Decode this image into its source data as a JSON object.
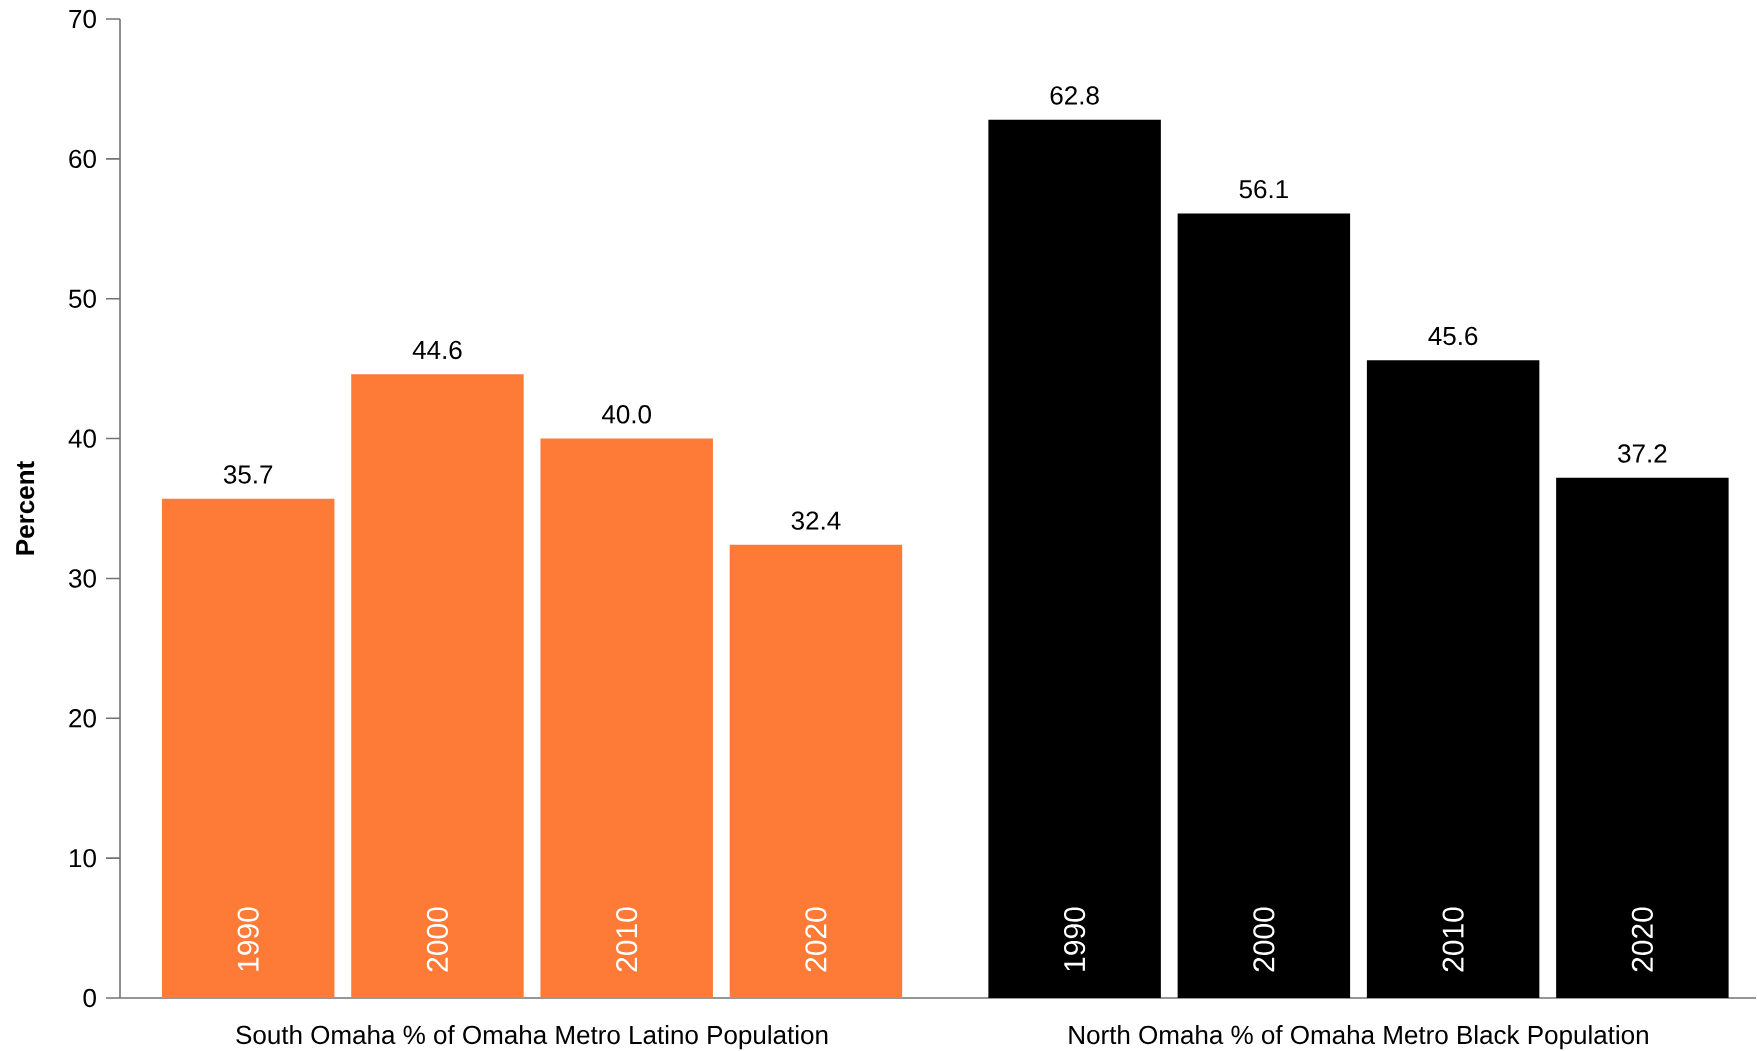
{
  "chart_data": {
    "type": "bar",
    "ylabel": "Percent",
    "categories": [
      "South Omaha % of Omaha Metro Latino Population",
      "North Omaha % of Omaha Metro Black Population"
    ],
    "series": [
      {
        "name": "1990",
        "colors": [
          "#fe7a37",
          "#000000"
        ],
        "values": [
          35.7,
          62.8
        ],
        "value_labels": [
          "35.7",
          "62.8"
        ]
      },
      {
        "name": "2000",
        "colors": [
          "#fe7a37",
          "#000000"
        ],
        "values": [
          44.6,
          56.1
        ],
        "value_labels": [
          "44.6",
          "56.1"
        ]
      },
      {
        "name": "2010",
        "colors": [
          "#fe7a37",
          "#000000"
        ],
        "values": [
          40.0,
          45.6
        ],
        "value_labels": [
          "40.0",
          "45.6"
        ]
      },
      {
        "name": "2020",
        "colors": [
          "#fe7a37",
          "#000000"
        ],
        "values": [
          32.4,
          37.2
        ],
        "value_labels": [
          "32.4",
          "37.2"
        ]
      }
    ],
    "ylim": [
      0,
      70
    ],
    "yticks": [
      0,
      10,
      20,
      30,
      40,
      50,
      60,
      70
    ]
  }
}
